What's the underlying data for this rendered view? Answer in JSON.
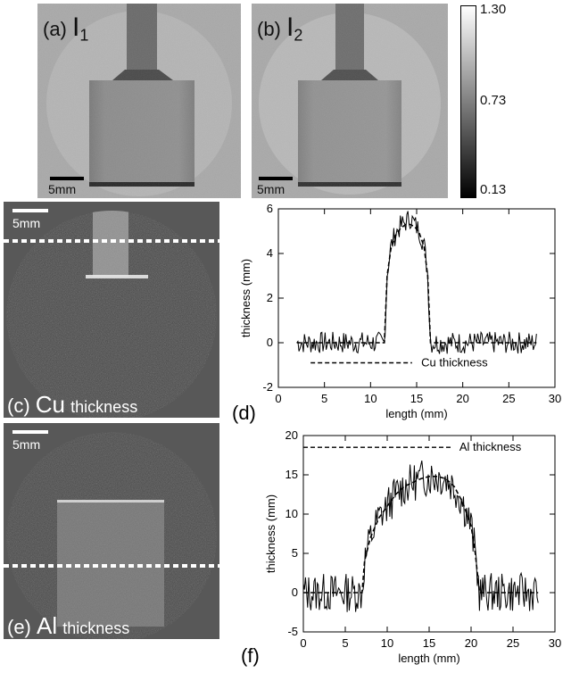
{
  "panels": {
    "a": {
      "letter": "(a)",
      "symbol": "I",
      "sub": "1",
      "scale": "5mm"
    },
    "b": {
      "letter": "(b)",
      "symbol": "I",
      "sub": "2",
      "scale": "5mm"
    },
    "c": {
      "letter": "(c)",
      "element": "Cu",
      "suffix": "thickness",
      "scale": "5mm"
    },
    "e": {
      "letter": "(e)",
      "element": "Al",
      "suffix": "thickness",
      "scale": "5mm"
    }
  },
  "colorbar": {
    "max": "1.30",
    "mid": "0.73",
    "min": "0.13"
  },
  "chart_data": [
    {
      "id": "d",
      "type": "line",
      "panel_label": "(d)",
      "xlabel": "length (mm)",
      "ylabel": "thickness (mm)",
      "xlim": [
        0,
        30
      ],
      "ylim": [
        -2,
        6
      ],
      "xticks": [
        0,
        5,
        10,
        15,
        20,
        25,
        30
      ],
      "yticks": [
        -2,
        0,
        2,
        4,
        6
      ],
      "legend": "Cu thickness",
      "series": [
        {
          "style": "dashed",
          "x": [
            2,
            11.5,
            11.8,
            12.2,
            12.7,
            13.2,
            13.8,
            14.3,
            14.8,
            15.3,
            15.8,
            16.2,
            16.5,
            28
          ],
          "y": [
            0,
            0,
            3.0,
            4.2,
            4.8,
            5.1,
            5.3,
            5.3,
            5.2,
            4.9,
            4.3,
            3.0,
            0,
            0
          ]
        },
        {
          "style": "solid",
          "amplitude": 0.5,
          "seed": 7,
          "x": [
            2,
            11.5,
            11.8,
            12.2,
            12.7,
            13.2,
            13.8,
            14.3,
            14.8,
            15.3,
            15.8,
            16.2,
            16.5,
            28
          ],
          "y": [
            0,
            0,
            3.1,
            4.3,
            4.9,
            5.2,
            5.4,
            5.6,
            5.3,
            5.0,
            4.4,
            3.1,
            0,
            0
          ]
        }
      ]
    },
    {
      "id": "f",
      "type": "line",
      "panel_label": "(f)",
      "xlabel": "length (mm)",
      "ylabel": "thickness (mm)",
      "xlim": [
        0,
        30
      ],
      "ylim": [
        -5,
        20
      ],
      "xticks": [
        0,
        5,
        10,
        15,
        20,
        25,
        30
      ],
      "yticks": [
        -5,
        0,
        5,
        10,
        15,
        20
      ],
      "legend": "Al thickness",
      "series": [
        {
          "style": "dashed",
          "x": [
            0,
            7,
            7.3,
            8,
            9,
            10,
            11,
            12,
            13,
            14,
            15,
            16,
            17,
            18,
            19,
            20,
            20.5,
            21,
            28
          ],
          "y": [
            0,
            0,
            4,
            7,
            9.5,
            11,
            12.5,
            13.5,
            14,
            14.5,
            14.8,
            14.8,
            14.5,
            13.5,
            11.5,
            8.5,
            5,
            0,
            0
          ]
        },
        {
          "style": "solid",
          "amplitude": 2.5,
          "seed": 13,
          "x": [
            0,
            7,
            7.3,
            8,
            9,
            10,
            11,
            12,
            13,
            14,
            15,
            16,
            17,
            18,
            19,
            20,
            20.5,
            21,
            28
          ],
          "y": [
            0,
            0,
            4,
            7,
            9.5,
            11,
            12.5,
            13.5,
            14,
            14.5,
            14.8,
            14.8,
            14.5,
            13.5,
            11.5,
            8.5,
            5,
            0,
            0
          ]
        }
      ]
    }
  ]
}
